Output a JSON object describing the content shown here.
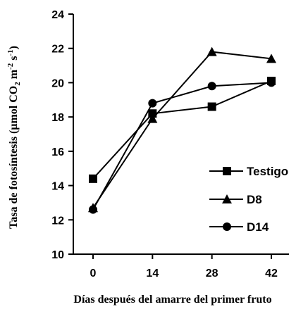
{
  "chart_data": {
    "type": "line",
    "x": [
      0,
      14,
      28,
      42
    ],
    "x_ticks": [
      "0",
      "14",
      "28",
      "42"
    ],
    "y_ticks": [
      "10",
      "12",
      "14",
      "16",
      "18",
      "20",
      "22",
      "24"
    ],
    "ylim": [
      10,
      24
    ],
    "xlabel": "Días después del amarre del primer fruto",
    "ylabel": {
      "prefix": "Tasa de fotosíntesis (μmol CO",
      "sub1": "2",
      "mid": " m",
      "sup1": "-2",
      "mid2": " s",
      "sup2": "-1",
      "suffix": ")"
    },
    "grid": false,
    "legend_position": "right",
    "series": [
      {
        "name": "Testigo",
        "marker": "square",
        "values": [
          14.4,
          18.2,
          18.6,
          20.1
        ]
      },
      {
        "name": "D8",
        "marker": "triangle",
        "values": [
          12.7,
          17.9,
          21.8,
          21.4
        ]
      },
      {
        "name": "D14",
        "marker": "circle",
        "values": [
          12.6,
          18.8,
          19.8,
          20.0
        ]
      }
    ]
  }
}
